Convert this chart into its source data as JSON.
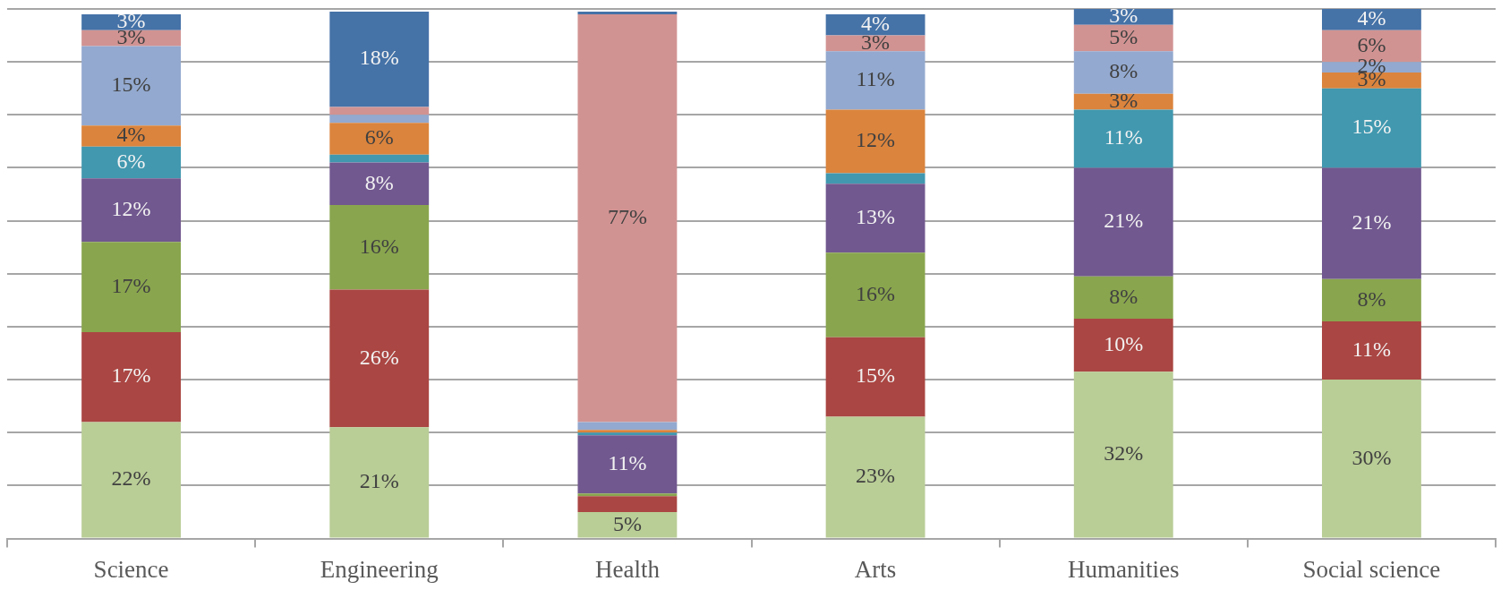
{
  "chart_data": {
    "type": "bar",
    "stacked": true,
    "categories": [
      "Science",
      "Engineering",
      "Health",
      "Arts",
      "Humanities",
      "Social science"
    ],
    "ylim": [
      0,
      100
    ],
    "yticks": [
      {
        "value": 0,
        "label": null
      },
      {
        "value": 10,
        "label": null
      },
      {
        "value": 20,
        "label": null
      },
      {
        "value": 30,
        "label": null
      },
      {
        "value": 40,
        "label": null
      },
      {
        "value": 50,
        "label": null
      },
      {
        "value": 60,
        "label": null
      },
      {
        "value": 70,
        "label": null
      },
      {
        "value": 80,
        "label": null
      },
      {
        "value": 90,
        "label": null
      },
      {
        "value": 100,
        "label": null
      }
    ],
    "grid": "y",
    "legend": false,
    "series": [
      {
        "color": "#b9cd96",
        "values": [
          22,
          21,
          5,
          23,
          31.5,
          30
        ],
        "value_labels": [
          "22%",
          "21%",
          "5%",
          "23%",
          "32%",
          "30%"
        ]
      },
      {
        "color": "#aa4643",
        "values": [
          17,
          26,
          3,
          15,
          10,
          11
        ],
        "value_labels": [
          "17%",
          "26%",
          null,
          "15%",
          "10%",
          "11%"
        ]
      },
      {
        "color": "#89a54e",
        "values": [
          17,
          16,
          0.5,
          16,
          8,
          8
        ],
        "value_labels": [
          "17%",
          "16%",
          null,
          "16%",
          "8%",
          "8%"
        ]
      },
      {
        "color": "#71588f",
        "values": [
          12,
          8,
          11,
          13,
          20.5,
          21
        ],
        "value_labels": [
          "12%",
          "8%",
          "11%",
          "13%",
          "21%",
          "21%"
        ]
      },
      {
        "color": "#4198af",
        "values": [
          6,
          1.5,
          0.5,
          2,
          11,
          15
        ],
        "value_labels": [
          "6%",
          null,
          null,
          null,
          "11%",
          "15%"
        ]
      },
      {
        "color": "#db843d",
        "values": [
          4,
          6,
          0.5,
          12,
          3,
          3
        ],
        "value_labels": [
          "4%",
          "6%",
          null,
          "12%",
          "3%",
          "3%"
        ]
      },
      {
        "color": "#93a9cf",
        "values": [
          15,
          1.5,
          1.5,
          11,
          8,
          2
        ],
        "value_labels": [
          "15%",
          null,
          null,
          "11%",
          "8%",
          "2%"
        ]
      },
      {
        "color": "#d19392",
        "values": [
          3,
          1.5,
          77,
          3,
          5,
          6
        ],
        "value_labels": [
          "3%",
          null,
          "77%",
          "3%",
          "5%",
          "6%"
        ]
      },
      {
        "color": "#4572a7",
        "values": [
          3,
          18,
          0.5,
          4,
          3,
          4
        ],
        "value_labels": [
          "3%",
          "18%",
          null,
          "4%",
          "3%",
          "4%"
        ]
      }
    ]
  }
}
